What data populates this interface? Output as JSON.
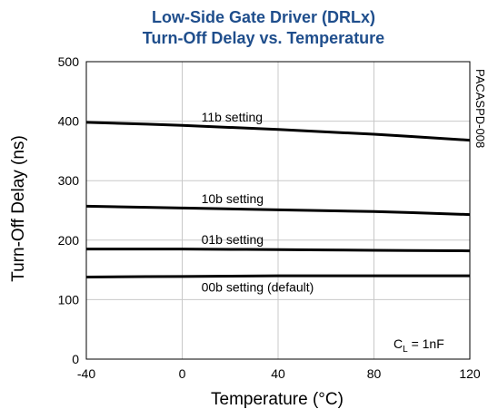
{
  "chart_data": {
    "type": "line",
    "title": "Low-Side Gate Driver (DRLx)",
    "subtitle": "Turn-Off Delay vs. Temperature",
    "xlabel": "Temperature (°C)",
    "ylabel": "Turn-Off Delay (ns)",
    "xlim": [
      -40,
      120
    ],
    "ylim": [
      0,
      500
    ],
    "x_ticks": [
      "-40",
      "0",
      "40",
      "80",
      "120"
    ],
    "y_ticks": [
      "0",
      "100",
      "200",
      "300",
      "400",
      "500"
    ],
    "x_tick_values": [
      -40,
      0,
      40,
      80,
      120
    ],
    "y_tick_values": [
      0,
      100,
      200,
      300,
      400,
      500
    ],
    "grid": true,
    "x": [
      -40,
      0,
      40,
      80,
      120
    ],
    "series": [
      {
        "name": "11b setting",
        "values": [
          398,
          393,
          386,
          378,
          368
        ]
      },
      {
        "name": "10b setting",
        "values": [
          257,
          254,
          251,
          248,
          243
        ]
      },
      {
        "name": "01b setting",
        "values": [
          185,
          185,
          184,
          183,
          182
        ]
      },
      {
        "name": "00b setting (default)",
        "values": [
          138,
          139,
          140,
          140,
          140
        ]
      }
    ],
    "annotation": {
      "main": "C",
      "sub": "L",
      "rest": " = 1nF"
    },
    "side_code": "PACASPD-008"
  }
}
